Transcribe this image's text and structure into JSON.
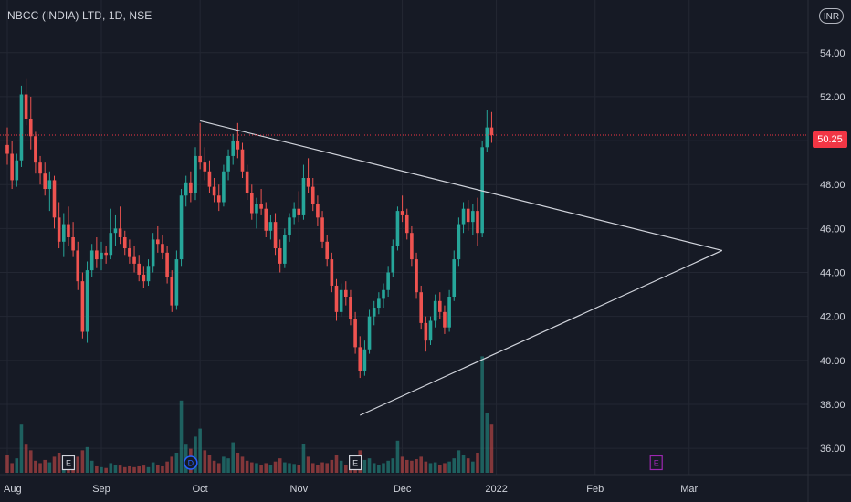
{
  "header": {
    "title": "NBCC (INDIA) LTD, 1D, NSE",
    "currency": "INR"
  },
  "last_price_label": "50.25",
  "colors": {
    "background": "#161a25",
    "grid": "#232733",
    "up": "#26a69a",
    "down": "#ef5350",
    "trendline": "#d1d4dc",
    "price_line": "#f23645",
    "text": "#d1d4dc",
    "dividend_marker": "#2962ff",
    "earnings_future_marker": "#9c27b0"
  },
  "chart_data": {
    "type": "candlestick",
    "title": "NBCC (INDIA) LTD, 1D, NSE",
    "ylim": [
      34.8,
      56.4
    ],
    "y_ticks": [
      "36.00",
      "38.00",
      "40.00",
      "42.00",
      "44.00",
      "46.00",
      "48.00",
      "50.00",
      "52.00",
      "54.00"
    ],
    "x_ticks": [
      "Aug",
      "Sep",
      "Oct",
      "Nov",
      "Dec",
      "2022",
      "Feb",
      "Mar"
    ],
    "x_tick_positions": [
      0,
      20,
      41,
      62,
      84,
      104,
      125,
      145
    ],
    "last_price": 50.25,
    "candles": [
      [
        49.8,
        50.6,
        48.9,
        49.4
      ],
      [
        49.4,
        50.0,
        47.8,
        48.2
      ],
      [
        48.2,
        49.4,
        47.9,
        49.1
      ],
      [
        49.1,
        52.5,
        48.8,
        52.1
      ],
      [
        52.1,
        52.8,
        50.7,
        51.0
      ],
      [
        51.0,
        52.0,
        49.6,
        50.2
      ],
      [
        50.2,
        50.4,
        48.5,
        49.0
      ],
      [
        49.0,
        49.3,
        48.0,
        48.5
      ],
      [
        48.5,
        49.0,
        47.5,
        47.8
      ],
      [
        47.8,
        48.6,
        46.8,
        48.2
      ],
      [
        48.2,
        48.4,
        46.0,
        46.5
      ],
      [
        46.5,
        47.2,
        45.1,
        45.4
      ],
      [
        45.4,
        46.7,
        44.7,
        46.2
      ],
      [
        46.2,
        47.0,
        45.2,
        45.6
      ],
      [
        45.6,
        46.3,
        44.7,
        45.0
      ],
      [
        45.0,
        45.4,
        43.2,
        43.6
      ],
      [
        43.6,
        44.0,
        41.0,
        41.3
      ],
      [
        41.3,
        44.5,
        40.8,
        44.1
      ],
      [
        44.1,
        45.3,
        43.8,
        45.0
      ],
      [
        45.0,
        45.6,
        44.2,
        44.6
      ],
      [
        44.6,
        45.4,
        44.1,
        44.9
      ],
      [
        44.9,
        45.2,
        44.4,
        44.8
      ],
      [
        44.8,
        46.9,
        44.6,
        45.8
      ],
      [
        45.8,
        46.6,
        45.2,
        46.0
      ],
      [
        46.0,
        47.0,
        45.3,
        45.6
      ],
      [
        45.6,
        45.9,
        44.8,
        45.1
      ],
      [
        45.1,
        45.5,
        44.4,
        44.7
      ],
      [
        44.7,
        45.2,
        44.0,
        44.4
      ],
      [
        44.4,
        44.8,
        43.6,
        43.9
      ],
      [
        43.9,
        44.3,
        43.3,
        43.6
      ],
      [
        43.6,
        44.6,
        43.4,
        44.3
      ],
      [
        44.3,
        45.8,
        44.0,
        45.5
      ],
      [
        45.5,
        46.1,
        44.9,
        45.3
      ],
      [
        45.3,
        45.7,
        44.6,
        44.9
      ],
      [
        44.9,
        45.2,
        43.5,
        43.8
      ],
      [
        43.8,
        44.1,
        42.2,
        42.5
      ],
      [
        42.5,
        45.0,
        42.3,
        44.6
      ],
      [
        44.6,
        47.8,
        44.3,
        47.5
      ],
      [
        47.5,
        48.4,
        47.0,
        48.1
      ],
      [
        48.1,
        48.6,
        47.2,
        47.6
      ],
      [
        47.6,
        49.7,
        47.3,
        49.3
      ],
      [
        49.3,
        50.8,
        48.7,
        49.0
      ],
      [
        49.0,
        49.7,
        48.2,
        48.6
      ],
      [
        48.6,
        49.1,
        47.6,
        47.9
      ],
      [
        47.9,
        48.3,
        47.2,
        47.5
      ],
      [
        47.5,
        48.0,
        46.8,
        47.2
      ],
      [
        47.2,
        48.9,
        47.0,
        48.6
      ],
      [
        48.6,
        49.6,
        48.2,
        49.3
      ],
      [
        49.3,
        50.3,
        48.9,
        50.0
      ],
      [
        50.0,
        50.8,
        49.2,
        49.6
      ],
      [
        49.6,
        49.9,
        48.3,
        48.6
      ],
      [
        48.6,
        48.9,
        47.3,
        47.6
      ],
      [
        47.6,
        48.0,
        46.4,
        46.7
      ],
      [
        46.7,
        47.4,
        46.0,
        47.1
      ],
      [
        47.1,
        47.8,
        46.6,
        46.9
      ],
      [
        46.9,
        47.2,
        45.6,
        45.9
      ],
      [
        45.9,
        46.6,
        45.5,
        46.3
      ],
      [
        46.3,
        46.7,
        44.8,
        45.1
      ],
      [
        45.1,
        45.5,
        44.0,
        44.4
      ],
      [
        44.4,
        46.0,
        44.2,
        45.7
      ],
      [
        45.7,
        46.7,
        45.4,
        46.5
      ],
      [
        46.5,
        47.2,
        46.2,
        46.9
      ],
      [
        46.9,
        47.7,
        46.3,
        46.6
      ],
      [
        46.6,
        48.9,
        46.4,
        48.3
      ],
      [
        48.3,
        49.2,
        47.6,
        47.9
      ],
      [
        47.9,
        48.3,
        46.8,
        47.1
      ],
      [
        47.1,
        47.5,
        46.1,
        46.5
      ],
      [
        46.5,
        46.8,
        45.1,
        45.4
      ],
      [
        45.4,
        45.7,
        44.3,
        44.6
      ],
      [
        44.6,
        44.9,
        43.1,
        43.4
      ],
      [
        43.4,
        43.7,
        41.8,
        42.2
      ],
      [
        42.2,
        43.5,
        42.0,
        43.2
      ],
      [
        43.2,
        43.6,
        42.5,
        42.9
      ],
      [
        42.9,
        43.2,
        41.6,
        41.9
      ],
      [
        41.9,
        42.2,
        40.3,
        40.6
      ],
      [
        40.6,
        41.1,
        39.2,
        39.5
      ],
      [
        39.5,
        40.9,
        39.3,
        40.5
      ],
      [
        40.5,
        42.3,
        40.3,
        42.0
      ],
      [
        42.0,
        42.7,
        41.6,
        42.4
      ],
      [
        42.4,
        43.1,
        42.1,
        42.8
      ],
      [
        42.8,
        43.5,
        42.4,
        43.2
      ],
      [
        43.2,
        44.3,
        42.9,
        44.0
      ],
      [
        44.0,
        45.5,
        43.8,
        45.2
      ],
      [
        45.2,
        47.0,
        45.0,
        46.8
      ],
      [
        46.8,
        47.5,
        46.3,
        46.6
      ],
      [
        46.6,
        46.9,
        45.5,
        45.8
      ],
      [
        45.8,
        46.1,
        44.3,
        44.6
      ],
      [
        44.6,
        44.9,
        42.8,
        43.1
      ],
      [
        43.1,
        43.4,
        41.4,
        41.7
      ],
      [
        41.7,
        42.0,
        40.4,
        40.9
      ],
      [
        40.9,
        42.0,
        40.7,
        41.8
      ],
      [
        41.8,
        43.0,
        41.5,
        42.7
      ],
      [
        42.7,
        43.1,
        41.9,
        42.2
      ],
      [
        42.2,
        42.5,
        41.2,
        41.5
      ],
      [
        41.5,
        43.2,
        41.3,
        42.9
      ],
      [
        42.9,
        45.0,
        42.7,
        44.6
      ],
      [
        44.6,
        46.5,
        44.3,
        46.2
      ],
      [
        46.2,
        47.2,
        45.8,
        46.9
      ],
      [
        46.9,
        47.3,
        45.9,
        46.3
      ],
      [
        46.3,
        47.1,
        45.7,
        46.8
      ],
      [
        46.8,
        47.4,
        45.2,
        45.8
      ],
      [
        45.8,
        50.0,
        45.6,
        49.7
      ],
      [
        49.7,
        51.4,
        49.5,
        50.6
      ],
      [
        50.6,
        51.3,
        49.9,
        50.25
      ]
    ],
    "volume": [
      {
        "v": 0.22,
        "up": false
      },
      {
        "v": 0.12,
        "up": false
      },
      {
        "v": 0.18,
        "up": true
      },
      {
        "v": 0.6,
        "up": true
      },
      {
        "v": 0.35,
        "up": false
      },
      {
        "v": 0.28,
        "up": false
      },
      {
        "v": 0.15,
        "up": false
      },
      {
        "v": 0.12,
        "up": false
      },
      {
        "v": 0.16,
        "up": false
      },
      {
        "v": 0.13,
        "up": true
      },
      {
        "v": 0.2,
        "up": false
      },
      {
        "v": 0.25,
        "up": false
      },
      {
        "v": 0.14,
        "up": true
      },
      {
        "v": 0.1,
        "up": false
      },
      {
        "v": 0.09,
        "up": false
      },
      {
        "v": 0.2,
        "up": false
      },
      {
        "v": 0.28,
        "up": false
      },
      {
        "v": 0.32,
        "up": true
      },
      {
        "v": 0.15,
        "up": true
      },
      {
        "v": 0.08,
        "up": false
      },
      {
        "v": 0.07,
        "up": true
      },
      {
        "v": 0.06,
        "up": false
      },
      {
        "v": 0.12,
        "up": true
      },
      {
        "v": 0.1,
        "up": true
      },
      {
        "v": 0.09,
        "up": false
      },
      {
        "v": 0.07,
        "up": false
      },
      {
        "v": 0.08,
        "up": false
      },
      {
        "v": 0.07,
        "up": false
      },
      {
        "v": 0.08,
        "up": false
      },
      {
        "v": 0.09,
        "up": false
      },
      {
        "v": 0.07,
        "up": true
      },
      {
        "v": 0.13,
        "up": true
      },
      {
        "v": 0.1,
        "up": false
      },
      {
        "v": 0.08,
        "up": false
      },
      {
        "v": 0.14,
        "up": false
      },
      {
        "v": 0.2,
        "up": false
      },
      {
        "v": 0.25,
        "up": true
      },
      {
        "v": 0.9,
        "up": true
      },
      {
        "v": 0.35,
        "up": true
      },
      {
        "v": 0.3,
        "up": false
      },
      {
        "v": 0.45,
        "up": true
      },
      {
        "v": 0.55,
        "up": true
      },
      {
        "v": 0.28,
        "up": false
      },
      {
        "v": 0.22,
        "up": false
      },
      {
        "v": 0.15,
        "up": false
      },
      {
        "v": 0.12,
        "up": false
      },
      {
        "v": 0.2,
        "up": true
      },
      {
        "v": 0.18,
        "up": true
      },
      {
        "v": 0.38,
        "up": true
      },
      {
        "v": 0.25,
        "up": false
      },
      {
        "v": 0.2,
        "up": false
      },
      {
        "v": 0.15,
        "up": false
      },
      {
        "v": 0.13,
        "up": false
      },
      {
        "v": 0.12,
        "up": true
      },
      {
        "v": 0.1,
        "up": false
      },
      {
        "v": 0.12,
        "up": false
      },
      {
        "v": 0.1,
        "up": true
      },
      {
        "v": 0.14,
        "up": false
      },
      {
        "v": 0.18,
        "up": false
      },
      {
        "v": 0.13,
        "up": true
      },
      {
        "v": 0.12,
        "up": true
      },
      {
        "v": 0.11,
        "up": true
      },
      {
        "v": 0.1,
        "up": false
      },
      {
        "v": 0.36,
        "up": true
      },
      {
        "v": 0.2,
        "up": false
      },
      {
        "v": 0.12,
        "up": false
      },
      {
        "v": 0.1,
        "up": false
      },
      {
        "v": 0.13,
        "up": false
      },
      {
        "v": 0.12,
        "up": false
      },
      {
        "v": 0.16,
        "up": false
      },
      {
        "v": 0.22,
        "up": false
      },
      {
        "v": 0.15,
        "up": true
      },
      {
        "v": 0.1,
        "up": false
      },
      {
        "v": 0.14,
        "up": false
      },
      {
        "v": 0.22,
        "up": false
      },
      {
        "v": 0.28,
        "up": false
      },
      {
        "v": 0.16,
        "up": true
      },
      {
        "v": 0.18,
        "up": true
      },
      {
        "v": 0.12,
        "up": true
      },
      {
        "v": 0.1,
        "up": true
      },
      {
        "v": 0.12,
        "up": true
      },
      {
        "v": 0.15,
        "up": true
      },
      {
        "v": 0.18,
        "up": true
      },
      {
        "v": 0.4,
        "up": true
      },
      {
        "v": 0.2,
        "up": false
      },
      {
        "v": 0.16,
        "up": false
      },
      {
        "v": 0.15,
        "up": false
      },
      {
        "v": 0.17,
        "up": false
      },
      {
        "v": 0.2,
        "up": false
      },
      {
        "v": 0.14,
        "up": false
      },
      {
        "v": 0.12,
        "up": true
      },
      {
        "v": 0.13,
        "up": true
      },
      {
        "v": 0.1,
        "up": false
      },
      {
        "v": 0.12,
        "up": false
      },
      {
        "v": 0.14,
        "up": true
      },
      {
        "v": 0.18,
        "up": true
      },
      {
        "v": 0.28,
        "up": true
      },
      {
        "v": 0.22,
        "up": true
      },
      {
        "v": 0.18,
        "up": false
      },
      {
        "v": 0.14,
        "up": true
      },
      {
        "v": 0.25,
        "up": false
      },
      {
        "v": 1.45,
        "up": true
      },
      {
        "v": 0.75,
        "up": true
      },
      {
        "v": 0.6,
        "up": false
      }
    ],
    "trendlines": [
      {
        "name": "resistance",
        "from": [
          41,
          50.9
        ],
        "to": [
          152,
          45.0
        ]
      },
      {
        "name": "support",
        "from": [
          75,
          37.5
        ],
        "to": [
          152,
          45.0
        ]
      }
    ],
    "event_markers": [
      {
        "label": "E",
        "kind": "earnings",
        "index": 13
      },
      {
        "label": "D",
        "kind": "dividend",
        "index": 39
      },
      {
        "label": "E",
        "kind": "earnings",
        "index": 74
      },
      {
        "label": "E",
        "kind": "earnings",
        "index": 138
      }
    ]
  }
}
